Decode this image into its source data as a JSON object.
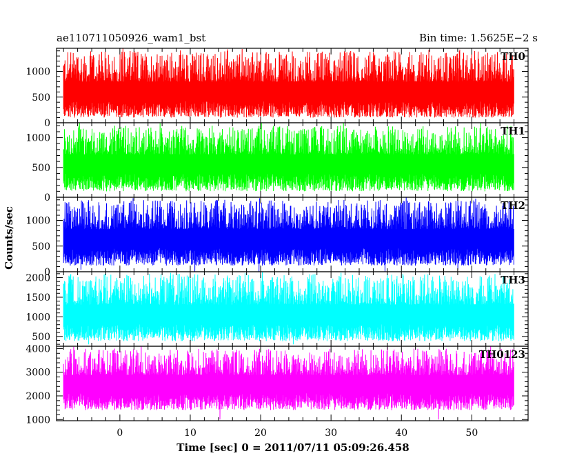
{
  "chart_data": {
    "type": "line",
    "title": "ae110711050926_wam1_bst",
    "subtitle": "Bin time: 1.5625E−2 s",
    "xlabel": "Time [sec] 0 = 2011/07/11 05:09:26.458",
    "ylabel": "Counts/sec",
    "xlim": [
      -9,
      58
    ],
    "xticks": [
      0,
      10,
      20,
      30,
      40,
      50
    ],
    "x_range": [
      -8,
      56
    ],
    "grid": false,
    "legend": "none",
    "panels": [
      {
        "name": "TH0",
        "color": "#ff0000",
        "ylim": [
          0,
          1450
        ],
        "yticks": [
          0,
          500,
          1000
        ],
        "baseline": 600,
        "low": 100,
        "high": 1400,
        "min_values": [
          0,
          40,
          120,
          180
        ]
      },
      {
        "name": "TH1",
        "color": "#00ff00",
        "ylim": [
          0,
          1250
        ],
        "yticks": [
          0,
          500,
          1000
        ],
        "baseline": 560,
        "low": 100,
        "high": 1200,
        "min_values": [
          0,
          40,
          120,
          180
        ]
      },
      {
        "name": "TH2",
        "color": "#0000ff",
        "ylim": [
          0,
          1450
        ],
        "yticks": [
          0,
          500,
          1000
        ],
        "baseline": 640,
        "low": 120,
        "high": 1400,
        "min_values": [
          0,
          40,
          120,
          180
        ]
      },
      {
        "name": "TH3",
        "color": "#00ffff",
        "ylim": [
          250,
          2150
        ],
        "yticks": [
          500,
          1000,
          1500,
          2000
        ],
        "baseline": 1050,
        "low": 380,
        "high": 2100,
        "min_values": [
          300,
          350,
          420
        ]
      },
      {
        "name": "TH0123",
        "color": "#ff00ff",
        "ylim": [
          950,
          4100
        ],
        "yticks": [
          1000,
          2000,
          3000,
          4000
        ],
        "baseline": 2500,
        "low": 1400,
        "high": 4000,
        "min_values": [
          1000,
          1100,
          1250
        ]
      }
    ]
  }
}
